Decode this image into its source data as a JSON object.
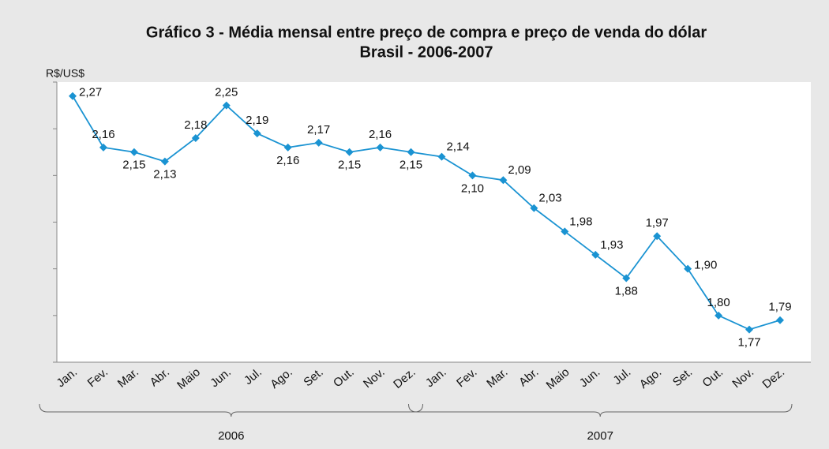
{
  "chart_data": {
    "type": "line",
    "title": "Gráfico 3 - Média mensal entre preço de compra e preço de venda do dólar",
    "subtitle": "Brasil - 2006-2007",
    "y_label": "R$/US$",
    "categories": [
      "Jan.",
      "Fev.",
      "Mar.",
      "Abr.",
      "Maio",
      "Jun.",
      "Jul.",
      "Ago.",
      "Set.",
      "Out.",
      "Nov.",
      "Dez.",
      "Jan.",
      "Fev.",
      "Mar.",
      "Abr.",
      "Maio",
      "Jun.",
      "Jul.",
      "Ago.",
      "Set.",
      "Out.",
      "Nov.",
      "Dez."
    ],
    "groups": [
      "2006",
      "2007"
    ],
    "series": [
      {
        "name": "Média mensal",
        "color": "#1a93d2",
        "values": [
          2.27,
          2.16,
          2.15,
          2.13,
          2.18,
          2.25,
          2.19,
          2.16,
          2.17,
          2.15,
          2.16,
          2.15,
          2.14,
          2.1,
          2.09,
          2.03,
          1.98,
          1.93,
          1.88,
          1.97,
          1.9,
          1.8,
          1.77,
          1.79
        ],
        "value_labels": [
          "2,27",
          "2,16",
          "2,15",
          "2,13",
          "2,18",
          "2,25",
          "2,19",
          "2,16",
          "2,17",
          "2,15",
          "2,16",
          "2,15",
          "2,14",
          "2,10",
          "2,09",
          "2,03",
          "1,98",
          "1,93",
          "1,88",
          "1,97",
          "1,90",
          "1,80",
          "1,77",
          "1,79"
        ]
      }
    ],
    "ylim": [
      1.7,
      2.3
    ],
    "yticks": [
      1.7,
      1.8,
      1.9,
      2.0,
      2.1,
      2.2,
      2.3
    ],
    "ytick_labels": false,
    "grid": false
  }
}
